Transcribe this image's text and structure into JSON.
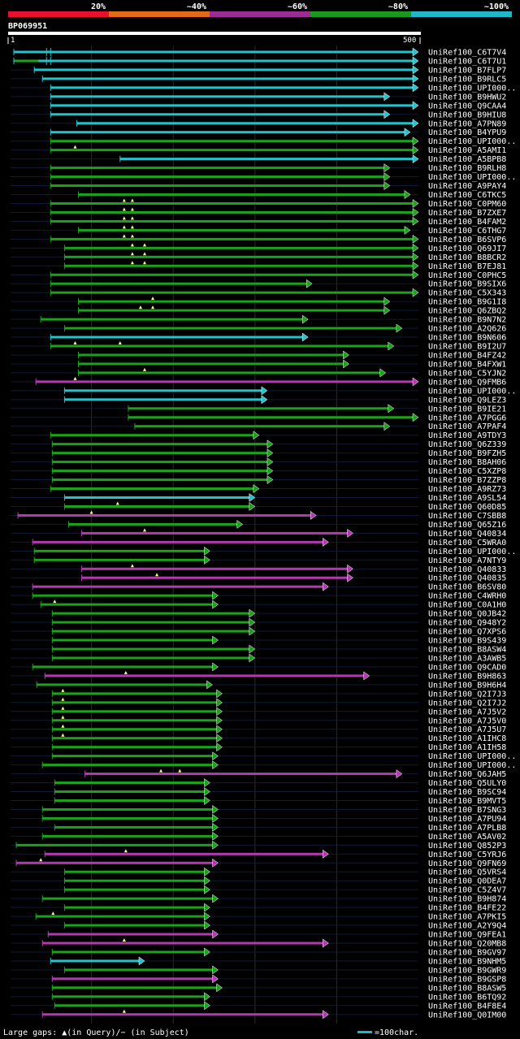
{
  "query_id": "BP069951",
  "scale": {
    "start": "1",
    "end": "500",
    "min": 1,
    "max": 500
  },
  "legend_bar": [
    {
      "label": "20%",
      "color": "#e8102e"
    },
    {
      "label": "~40%",
      "color": "#e46a1a"
    },
    {
      "label": "~60%",
      "color": "#9b2c94"
    },
    {
      "label": "~80%",
      "color": "#1a9a1a"
    },
    {
      "label": "~100%",
      "color": "#1fb8c8"
    }
  ],
  "footer": {
    "gaps_text": "Large gaps: ▲(in Query)/− (in Subject)",
    "scale_text": "=100char.",
    "scale_color": "#1fb8c8"
  },
  "chart_data": {
    "type": "alignment",
    "title": "BP069951",
    "xlim": [
      1,
      500
    ],
    "color_key": {
      "p20": "#e8102e",
      "p40": "#e46a1a",
      "p60": "#b23ab0",
      "p80": "#1aa21a",
      "p100": "#22c3cc"
    },
    "hits": [
      {
        "name": "UniRef100_C6T7V4",
        "start": 5,
        "end": 500,
        "cls": "p100",
        "ticks": [
          45,
          50
        ]
      },
      {
        "name": "UniRef100_C6T7U1",
        "start": 5,
        "end": 500,
        "cls": "p100",
        "green_end": 35,
        "ticks": [
          45,
          50
        ]
      },
      {
        "name": "UniRef100_B7FLP7",
        "start": 30,
        "end": 500,
        "cls": "p100"
      },
      {
        "name": "UniRef100_B9RLC5",
        "start": 40,
        "end": 500,
        "cls": "p100"
      },
      {
        "name": "UniRef100_UPI000..",
        "start": 50,
        "end": 500,
        "cls": "p100"
      },
      {
        "name": "UniRef100_B9HWU2",
        "start": 50,
        "end": 465,
        "cls": "p100"
      },
      {
        "name": "UniRef100_Q9CAA4",
        "start": 50,
        "end": 500,
        "cls": "p100"
      },
      {
        "name": "UniRef100_B9HIU8",
        "start": 50,
        "end": 465,
        "cls": "p100"
      },
      {
        "name": "UniRef100_A7PN89",
        "start": 82,
        "end": 500,
        "cls": "p100"
      },
      {
        "name": "UniRef100_B4YPU9",
        "start": 50,
        "end": 490,
        "cls": "p100"
      },
      {
        "name": "UniRef100_UPI000..",
        "start": 50,
        "end": 500,
        "cls": "p80"
      },
      {
        "name": "UniRef100_A5AMI1",
        "start": 50,
        "end": 500,
        "cls": "p80",
        "marks": [
          80
        ]
      },
      {
        "name": "UniRef100_A5BPB8",
        "start": 135,
        "end": 500,
        "cls": "p100"
      },
      {
        "name": "UniRef100_B9RLH8",
        "start": 50,
        "end": 465,
        "cls": "p80"
      },
      {
        "name": "UniRef100_UPI000..",
        "start": 50,
        "end": 465,
        "cls": "p80"
      },
      {
        "name": "UniRef100_A9PAY4",
        "start": 50,
        "end": 465,
        "cls": "p80"
      },
      {
        "name": "UniRef100_C6TKC5",
        "start": 84,
        "end": 490,
        "cls": "p80"
      },
      {
        "name": "UniRef100_C0PM60",
        "start": 50,
        "end": 500,
        "cls": "p80",
        "marks": [
          140,
          150
        ]
      },
      {
        "name": "UniRef100_B7ZXE7",
        "start": 50,
        "end": 500,
        "cls": "p80",
        "marks": [
          140,
          150
        ]
      },
      {
        "name": "UniRef100_B4FAM2",
        "start": 50,
        "end": 500,
        "cls": "p80",
        "marks": [
          140,
          150
        ]
      },
      {
        "name": "UniRef100_C6THG7",
        "start": 84,
        "end": 490,
        "cls": "p80",
        "marks": [
          140,
          150
        ]
      },
      {
        "name": "UniRef100_B6SVP6",
        "start": 50,
        "end": 500,
        "cls": "p80",
        "marks": [
          140,
          150
        ]
      },
      {
        "name": "UniRef100_Q69JI7",
        "start": 67,
        "end": 500,
        "cls": "p80",
        "marks": [
          150,
          165
        ]
      },
      {
        "name": "UniRef100_B8BCR2",
        "start": 67,
        "end": 500,
        "cls": "p80",
        "marks": [
          150,
          165
        ]
      },
      {
        "name": "UniRef100_B7EJ81",
        "start": 67,
        "end": 500,
        "cls": "p80",
        "marks": [
          150,
          165
        ]
      },
      {
        "name": "UniRef100_C0PHC5",
        "start": 50,
        "end": 500,
        "cls": "p80"
      },
      {
        "name": "UniRef100_B9SIX6",
        "start": 50,
        "end": 370,
        "cls": "p80"
      },
      {
        "name": "UniRef100_C5X343",
        "start": 50,
        "end": 500,
        "cls": "p80"
      },
      {
        "name": "UniRef100_B9G1I8",
        "start": 84,
        "end": 465,
        "cls": "p80",
        "marks": [
          175
        ]
      },
      {
        "name": "UniRef100_Q6ZBQ2",
        "start": 84,
        "end": 465,
        "cls": "p80",
        "marks": [
          160,
          175
        ]
      },
      {
        "name": "UniRef100_B9N7N2",
        "start": 38,
        "end": 365,
        "cls": "p80"
      },
      {
        "name": "UniRef100_A2Q626",
        "start": 67,
        "end": 480,
        "cls": "p80"
      },
      {
        "name": "UniRef100_B9N606",
        "start": 50,
        "end": 365,
        "cls": "p100"
      },
      {
        "name": "UniRef100_B9I2U7",
        "start": 50,
        "end": 470,
        "cls": "p80",
        "marks": [
          80,
          135
        ]
      },
      {
        "name": "UniRef100_B4FZ42",
        "start": 84,
        "end": 415,
        "cls": "p80"
      },
      {
        "name": "UniRef100_B4FXW1",
        "start": 84,
        "end": 415,
        "cls": "p80"
      },
      {
        "name": "UniRef100_C5YJN2",
        "start": 84,
        "end": 460,
        "cls": "p80",
        "marks": [
          165
        ]
      },
      {
        "name": "UniRef100_Q9FMB6",
        "start": 32,
        "end": 500,
        "cls": "p60",
        "marks": [
          80
        ]
      },
      {
        "name": "UniRef100_UPI000..",
        "start": 67,
        "end": 315,
        "cls": "p100"
      },
      {
        "name": "UniRef100_Q9LEZ3",
        "start": 67,
        "end": 315,
        "cls": "p100"
      },
      {
        "name": "UniRef100_B9IE21",
        "start": 145,
        "end": 470,
        "cls": "p80"
      },
      {
        "name": "UniRef100_A7PGG6",
        "start": 145,
        "end": 500,
        "cls": "p80"
      },
      {
        "name": "UniRef100_A7PAF4",
        "start": 153,
        "end": 465,
        "cls": "p80"
      },
      {
        "name": "UniRef100_A9TDY3",
        "start": 50,
        "end": 305,
        "cls": "p80"
      },
      {
        "name": "UniRef100_Q6Z339",
        "start": 52,
        "end": 322,
        "cls": "p80"
      },
      {
        "name": "UniRef100_B9FZH5",
        "start": 52,
        "end": 322,
        "cls": "p80"
      },
      {
        "name": "UniRef100_B8AH06",
        "start": 52,
        "end": 322,
        "cls": "p80"
      },
      {
        "name": "UniRef100_C5XZP8",
        "start": 52,
        "end": 322,
        "cls": "p80"
      },
      {
        "name": "UniRef100_B7ZZP8",
        "start": 52,
        "end": 322,
        "cls": "p80"
      },
      {
        "name": "UniRef100_A9RZ73",
        "start": 50,
        "end": 305,
        "cls": "p80"
      },
      {
        "name": "UniRef100_A9SL54",
        "start": 67,
        "end": 300,
        "cls": "p100"
      },
      {
        "name": "UniRef100_Q60D85",
        "start": 67,
        "end": 300,
        "cls": "p80",
        "marks": [
          132
        ]
      },
      {
        "name": "UniRef100_C7SBB8",
        "start": 10,
        "end": 375,
        "cls": "p60",
        "marks": [
          100
        ]
      },
      {
        "name": "UniRef100_Q65Z16",
        "start": 72,
        "end": 285,
        "cls": "p80"
      },
      {
        "name": "UniRef100_Q40834",
        "start": 88,
        "end": 420,
        "cls": "p60",
        "marks": [
          165
        ]
      },
      {
        "name": "UniRef100_C5WRA0",
        "start": 28,
        "end": 390,
        "cls": "p60"
      },
      {
        "name": "UniRef100_UPI000..",
        "start": 30,
        "end": 245,
        "cls": "p80"
      },
      {
        "name": "UniRef100_A7NTY9",
        "start": 30,
        "end": 245,
        "cls": "p80"
      },
      {
        "name": "UniRef100_Q40833",
        "start": 88,
        "end": 420,
        "cls": "p60",
        "marks": [
          150
        ]
      },
      {
        "name": "UniRef100_Q40835",
        "start": 88,
        "end": 420,
        "cls": "p60",
        "marks": [
          180
        ]
      },
      {
        "name": "UniRef100_B6SV80",
        "start": 28,
        "end": 390,
        "cls": "p60"
      },
      {
        "name": "UniRef100_C4WRH0",
        "start": 28,
        "end": 255,
        "cls": "p80"
      },
      {
        "name": "UniRef100_C0A1H0",
        "start": 38,
        "end": 255,
        "cls": "p80",
        "marks": [
          55
        ]
      },
      {
        "name": "UniRef100_Q0JB42",
        "start": 52,
        "end": 300,
        "cls": "p80"
      },
      {
        "name": "UniRef100_Q948Y2",
        "start": 52,
        "end": 300,
        "cls": "p80"
      },
      {
        "name": "UniRef100_Q7XPS6",
        "start": 52,
        "end": 300,
        "cls": "p80"
      },
      {
        "name": "UniRef100_B9S439",
        "start": 52,
        "end": 255,
        "cls": "p80"
      },
      {
        "name": "UniRef100_B8ASW4",
        "start": 52,
        "end": 300,
        "cls": "p80"
      },
      {
        "name": "UniRef100_A3AWB5",
        "start": 52,
        "end": 300,
        "cls": "p80"
      },
      {
        "name": "UniRef100_Q9CAD0",
        "start": 28,
        "end": 255,
        "cls": "p80"
      },
      {
        "name": "UniRef100_B9H863",
        "start": 43,
        "end": 440,
        "cls": "p60",
        "marks": [
          142
        ]
      },
      {
        "name": "UniRef100_B9H6H4",
        "start": 33,
        "end": 248,
        "cls": "p80"
      },
      {
        "name": "UniRef100_Q2I7J3",
        "start": 52,
        "end": 260,
        "cls": "p80",
        "marks": [
          65
        ]
      },
      {
        "name": "UniRef100_Q2I7J2",
        "start": 52,
        "end": 260,
        "cls": "p80",
        "marks": [
          65
        ]
      },
      {
        "name": "UniRef100_A7J5V2",
        "start": 52,
        "end": 260,
        "cls": "p80",
        "marks": [
          65
        ]
      },
      {
        "name": "UniRef100_A7J5V0",
        "start": 52,
        "end": 260,
        "cls": "p80",
        "marks": [
          65
        ]
      },
      {
        "name": "UniRef100_A7J5U7",
        "start": 52,
        "end": 260,
        "cls": "p80",
        "marks": [
          65
        ]
      },
      {
        "name": "UniRef100_A1IHC8",
        "start": 52,
        "end": 260,
        "cls": "p80",
        "marks": [
          65
        ]
      },
      {
        "name": "UniRef100_A1IH58",
        "start": 52,
        "end": 260,
        "cls": "p80"
      },
      {
        "name": "UniRef100_UPI000..",
        "start": 52,
        "end": 255,
        "cls": "p80"
      },
      {
        "name": "UniRef100_UPI000..",
        "start": 40,
        "end": 255,
        "cls": "p80"
      },
      {
        "name": "UniRef100_Q6JAH5",
        "start": 92,
        "end": 480,
        "cls": "p60",
        "marks": [
          185,
          208
        ]
      },
      {
        "name": "UniRef100_Q5ULY0",
        "start": 55,
        "end": 245,
        "cls": "p80"
      },
      {
        "name": "UniRef100_B9SC94",
        "start": 55,
        "end": 245,
        "cls": "p80"
      },
      {
        "name": "UniRef100_B9MVT5",
        "start": 55,
        "end": 245,
        "cls": "p80"
      },
      {
        "name": "UniRef100_B7SNG3",
        "start": 40,
        "end": 255,
        "cls": "p80"
      },
      {
        "name": "UniRef100_A7PU94",
        "start": 40,
        "end": 255,
        "cls": "p80"
      },
      {
        "name": "UniRef100_A7PLB8",
        "start": 55,
        "end": 255,
        "cls": "p80"
      },
      {
        "name": "UniRef100_A5AV02",
        "start": 40,
        "end": 255,
        "cls": "p80"
      },
      {
        "name": "UniRef100_Q852P3",
        "start": 8,
        "end": 255,
        "cls": "p80"
      },
      {
        "name": "UniRef100_C5YRJ6",
        "start": 43,
        "end": 390,
        "cls": "p60",
        "marks": [
          142
        ]
      },
      {
        "name": "UniRef100_Q9FN69",
        "start": 8,
        "end": 255,
        "cls": "p60",
        "marks": [
          38
        ]
      },
      {
        "name": "UniRef100_Q5VRS4",
        "start": 67,
        "end": 245,
        "cls": "p80"
      },
      {
        "name": "UniRef100_Q0DEA7",
        "start": 67,
        "end": 245,
        "cls": "p80"
      },
      {
        "name": "UniRef100_C5Z4V7",
        "start": 67,
        "end": 245,
        "cls": "p80"
      },
      {
        "name": "UniRef100_B9H874",
        "start": 40,
        "end": 255,
        "cls": "p80"
      },
      {
        "name": "UniRef100_B4FE22",
        "start": 67,
        "end": 245,
        "cls": "p80"
      },
      {
        "name": "UniRef100_A7PKI5",
        "start": 32,
        "end": 245,
        "cls": "p80",
        "marks": [
          53
        ]
      },
      {
        "name": "UniRef100_A2Y9Q4",
        "start": 67,
        "end": 245,
        "cls": "p80"
      },
      {
        "name": "UniRef100_Q9FEA1",
        "start": 47,
        "end": 255,
        "cls": "p60"
      },
      {
        "name": "UniRef100_Q20MB8",
        "start": 40,
        "end": 390,
        "cls": "p60",
        "marks": [
          140
        ]
      },
      {
        "name": "UniRef100_B9GV97",
        "start": 52,
        "end": 245,
        "cls": "p80"
      },
      {
        "name": "UniRef100_B9NHM5",
        "start": 50,
        "end": 165,
        "cls": "p100"
      },
      {
        "name": "UniRef100_B9GWR9",
        "start": 67,
        "end": 255,
        "cls": "p80"
      },
      {
        "name": "UniRef100_B9GSP8",
        "start": 52,
        "end": 255,
        "cls": "p60"
      },
      {
        "name": "UniRef100_B8ASW5",
        "start": 52,
        "end": 260,
        "cls": "p80"
      },
      {
        "name": "UniRef100_B6TQ92",
        "start": 52,
        "end": 245,
        "cls": "p80"
      },
      {
        "name": "UniRef100_B4F8E4",
        "start": 55,
        "end": 245,
        "cls": "p80"
      },
      {
        "name": "UniRef100_Q0IM00",
        "start": 40,
        "end": 390,
        "cls": "p60",
        "marks": [
          140
        ]
      }
    ]
  }
}
